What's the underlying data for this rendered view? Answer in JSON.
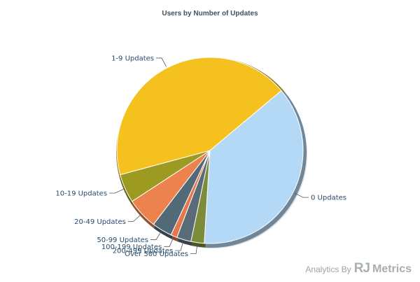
{
  "chart_data": {
    "type": "pie",
    "title": "Users by Number of Updates",
    "categories": [
      "0 Updates",
      "Over 500 Updates",
      "200-499 Updates",
      "100-199 Updates",
      "50-99 Updates",
      "20-49 Updates",
      "10-19 Updates",
      "1-9 Updates"
    ],
    "values": [
      37.1,
      2.3,
      2.5,
      1.1,
      3.5,
      5.4,
      5.0,
      43.1
    ],
    "colors": [
      "#b3d9f7",
      "#7d8c3a",
      "#5a6b78",
      "#e8764c",
      "#526a78",
      "#ec834f",
      "#9c9a20",
      "#f5c11e"
    ],
    "legend": "none",
    "start_angle_deg": 320
  },
  "branding": {
    "prefix": "Analytics By",
    "rj": "RJ",
    "metrics": "Metrics"
  }
}
